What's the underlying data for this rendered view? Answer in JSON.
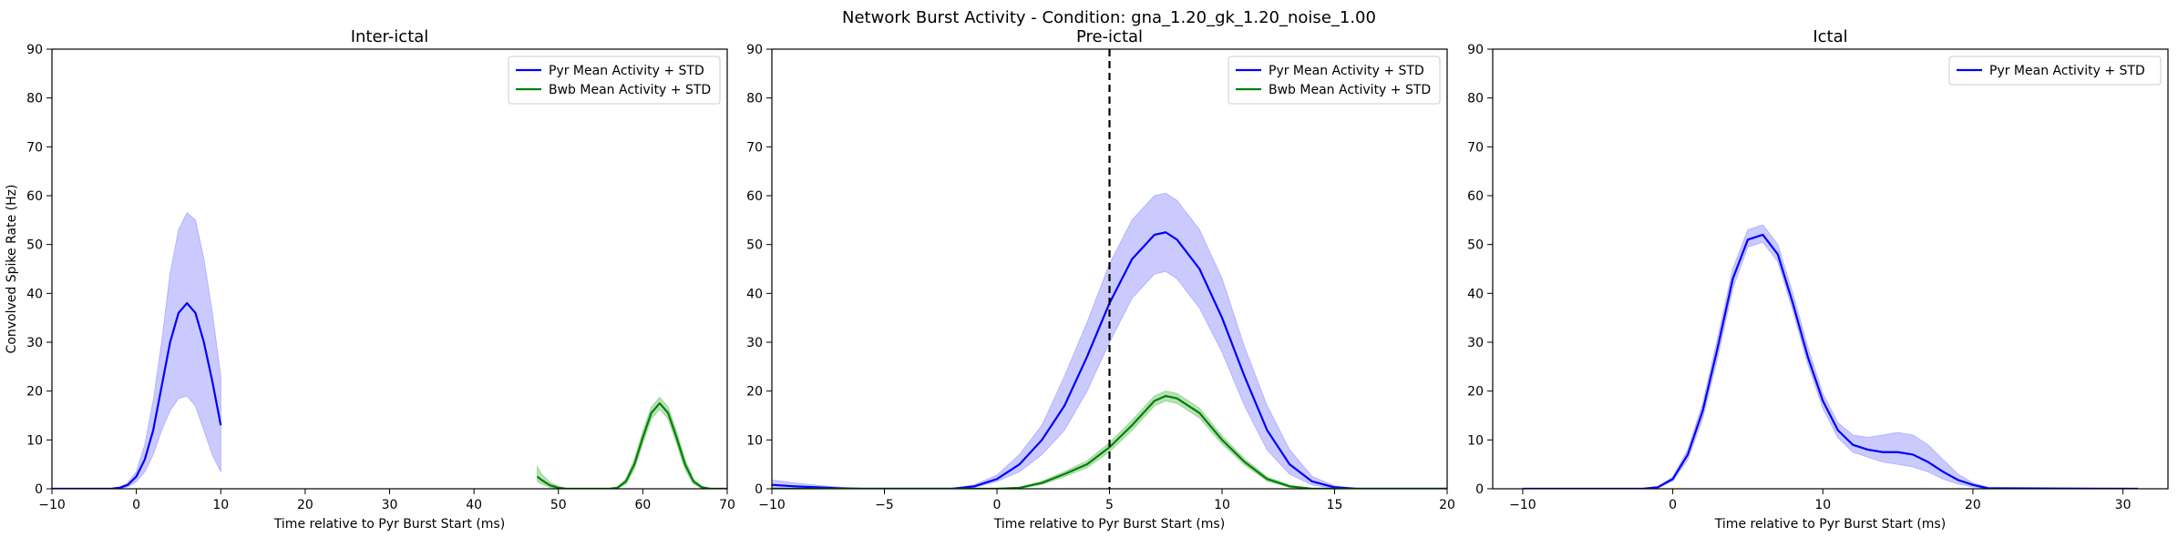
{
  "suptitle": "Network Burst Activity - Condition: gna_1.20_gk_1.20_noise_1.00",
  "colors": {
    "pyr": "#0000ff",
    "pyr_band": "#b3b3ff",
    "bwb": "#008000",
    "bwb_band": "#99d699"
  },
  "chart_data": [
    {
      "type": "line",
      "title": "Inter-ictal",
      "xlabel": "Time relative to Pyr Burst Start (ms)",
      "ylabel": "Convolved Spike Rate (Hz)",
      "xlim": [
        -10,
        70
      ],
      "ylim": [
        0,
        90
      ],
      "xticks": [
        -10,
        0,
        10,
        20,
        30,
        40,
        50,
        60,
        70
      ],
      "yticks": [
        0,
        10,
        20,
        30,
        40,
        50,
        60,
        70,
        80,
        90
      ],
      "legend_position": "top-right",
      "series": [
        {
          "name": "Pyr Mean Activity + STD",
          "color": "pyr",
          "x": [
            -10,
            -3,
            -2,
            -1,
            0,
            1,
            2,
            3,
            4,
            5,
            6,
            7,
            8,
            9,
            10
          ],
          "y": [
            0,
            0,
            0.2,
            0.8,
            2.5,
            6,
            12,
            21,
            30,
            36,
            38,
            36,
            30,
            22,
            13
          ],
          "lower": [
            0,
            0,
            0.1,
            0.4,
            1.5,
            3.5,
            7,
            12,
            16,
            18.5,
            19,
            17,
            12,
            7,
            3.5
          ],
          "upper": [
            0,
            0,
            0.3,
            1.2,
            3.5,
            9,
            18,
            30,
            44,
            53,
            56.5,
            55,
            47,
            36,
            23
          ]
        },
        {
          "name": "Bwb Mean Activity + STD",
          "color": "bwb",
          "x": [
            47.5,
            48,
            49,
            50,
            51,
            52,
            53,
            54,
            55,
            56,
            57,
            58,
            59,
            60,
            61,
            62,
            63,
            64,
            65,
            66,
            67,
            68,
            70
          ],
          "y": [
            2.5,
            1.8,
            0.7,
            0.2,
            0,
            0,
            0,
            0,
            0,
            0,
            0.2,
            1.5,
            5,
            10.5,
            15.5,
            17.5,
            15.5,
            10.5,
            5,
            1.5,
            0.3,
            0,
            0
          ],
          "lower": [
            1.5,
            1.0,
            0.3,
            0,
            0,
            0,
            0,
            0,
            0,
            0,
            0.1,
            1.0,
            4,
            9.3,
            14.3,
            16.3,
            14.3,
            9.3,
            4,
            1.0,
            0.1,
            0,
            0
          ],
          "upper": [
            4.5,
            3.0,
            1.3,
            0.5,
            0,
            0,
            0,
            0,
            0,
            0,
            0.4,
            2.0,
            6,
            11.7,
            16.7,
            18.7,
            16.7,
            11.7,
            6,
            2.0,
            0.5,
            0,
            0
          ]
        }
      ]
    },
    {
      "type": "line",
      "title": "Pre-ictal",
      "xlabel": "Time relative to Pyr Burst Start (ms)",
      "ylabel": "",
      "xlim": [
        -10,
        20
      ],
      "ylim": [
        0,
        90
      ],
      "xticks": [
        -10,
        -5,
        0,
        5,
        10,
        15,
        20
      ],
      "yticks": [
        0,
        10,
        20,
        30,
        40,
        50,
        60,
        70,
        80,
        90
      ],
      "legend_position": "top-right",
      "vline": 5,
      "series": [
        {
          "name": "Pyr Mean Activity + STD",
          "color": "pyr",
          "x": [
            -10,
            -9,
            -8,
            -7,
            -6,
            -5,
            -4,
            -3,
            -2,
            -1,
            0,
            1,
            2,
            3,
            4,
            5,
            6,
            7,
            7.5,
            8,
            9,
            10,
            11,
            12,
            13,
            14,
            15,
            16,
            20
          ],
          "y": [
            0.8,
            0.5,
            0.3,
            0.1,
            0,
            0,
            0,
            0,
            0,
            0.5,
            2,
            5,
            10,
            17,
            27,
            38,
            47,
            52,
            52.5,
            51,
            45,
            35,
            23,
            12,
            5,
            1.5,
            0.3,
            0,
            0
          ],
          "lower": [
            0,
            0,
            0,
            0,
            0,
            0,
            0,
            0,
            0,
            0.3,
            1.5,
            3.5,
            7,
            12,
            20,
            30,
            39,
            44,
            44.5,
            43,
            37,
            28,
            17,
            8,
            3,
            0.8,
            0.1,
            0,
            0
          ],
          "upper": [
            1.8,
            1.2,
            0.7,
            0.3,
            0,
            0,
            0,
            0,
            0,
            0.8,
            2.8,
            7,
            13,
            23,
            34,
            46,
            55,
            60,
            60.5,
            59,
            53,
            43,
            29,
            17,
            8,
            2.5,
            0.6,
            0,
            0
          ]
        },
        {
          "name": "Bwb Mean Activity + STD",
          "color": "bwb",
          "x": [
            -10,
            -2,
            0,
            1,
            2,
            3,
            4,
            5,
            6,
            7,
            7.5,
            8,
            9,
            10,
            11,
            12,
            13,
            14,
            15,
            20
          ],
          "y": [
            0,
            0,
            0,
            0.2,
            1.2,
            3,
            5,
            8.5,
            13,
            18,
            19,
            18.5,
            15.5,
            10,
            5.5,
            2,
            0.5,
            0,
            0,
            0
          ],
          "lower": [
            0,
            0,
            0,
            0.1,
            0.9,
            2.5,
            4.3,
            7.6,
            12,
            17,
            18,
            17.5,
            14.5,
            9.2,
            4.9,
            1.6,
            0.3,
            0,
            0,
            0
          ],
          "upper": [
            0,
            0,
            0,
            0.3,
            1.5,
            3.5,
            5.7,
            9.4,
            14,
            19,
            20,
            19.5,
            16.5,
            10.8,
            6.1,
            2.4,
            0.7,
            0,
            0,
            0
          ]
        }
      ]
    },
    {
      "type": "line",
      "title": "Ictal",
      "xlabel": "Time relative to Pyr Burst Start (ms)",
      "ylabel": "",
      "xlim": [
        -12,
        33
      ],
      "ylim": [
        0,
        90
      ],
      "xticks": [
        -10,
        0,
        10,
        20,
        30
      ],
      "yticks": [
        0,
        10,
        20,
        30,
        40,
        50,
        60,
        70,
        80,
        90
      ],
      "legend_position": "top-right",
      "series": [
        {
          "name": "Pyr Mean Activity + STD",
          "color": "pyr",
          "x": [
            -10,
            -2,
            -1,
            0,
            1,
            2,
            3,
            4,
            5,
            6,
            7,
            8,
            9,
            10,
            11,
            12,
            13,
            14,
            15,
            16,
            17,
            18,
            19,
            20,
            21,
            31
          ],
          "y": [
            0,
            0,
            0.3,
            2,
            7,
            16,
            29,
            43,
            51,
            52,
            48,
            38,
            27,
            18,
            12,
            9,
            8,
            7.5,
            7.5,
            7,
            5.5,
            3.5,
            1.8,
            0.8,
            0.1,
            0
          ],
          "lower": [
            0,
            0,
            0.2,
            1.6,
            6,
            14.5,
            27,
            41,
            49.5,
            50.5,
            46.5,
            36.5,
            25.5,
            16.5,
            10.5,
            7.5,
            6.5,
            5.5,
            5,
            4.5,
            3.5,
            2,
            1,
            0.4,
            0,
            0
          ],
          "upper": [
            0,
            0,
            0.4,
            2.4,
            8,
            17.5,
            31,
            45,
            53,
            54,
            50,
            40,
            29,
            19.5,
            13.5,
            11,
            10.5,
            11,
            11.5,
            11,
            9,
            6,
            3,
            1.2,
            0.3,
            0
          ]
        }
      ]
    }
  ]
}
